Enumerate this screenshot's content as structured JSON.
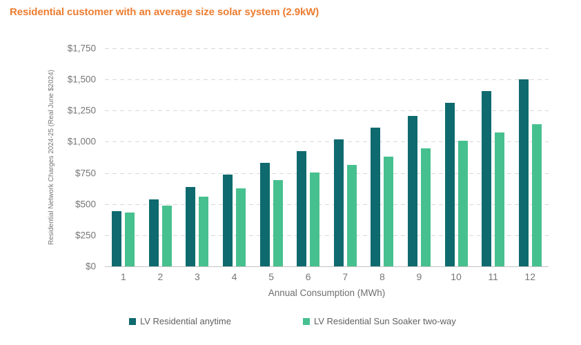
{
  "title": "Residential customer with an average size solar system (2.9kW)",
  "colors": {
    "title": "#ED7D31",
    "series1": "#0E6A6E",
    "series2": "#47C08F",
    "gridline": "#D8D8D8",
    "axis_text": "#767676",
    "baseline": "#C2C2C2"
  },
  "chart_data": {
    "type": "bar",
    "title": "Residential customer with an average size solar system (2.9kW)",
    "categories": [
      "1",
      "2",
      "3",
      "4",
      "5",
      "6",
      "7",
      "8",
      "9",
      "10",
      "11",
      "12"
    ],
    "series": [
      {
        "name": "LV Residential anytime",
        "color": "#0E6A6E",
        "values": [
          445,
          540,
          635,
          735,
          830,
          925,
          1020,
          1115,
          1210,
          1310,
          1405,
          1500
        ]
      },
      {
        "name": "LV Residential Sun Soaker two-way",
        "color": "#47C08F",
        "values": [
          430,
          490,
          560,
          625,
          690,
          755,
          815,
          880,
          945,
          1010,
          1075,
          1140
        ]
      }
    ],
    "xlabel": "Annual Consumption (MWh)",
    "ylabel": "Residential Network Charges 2024-25 (Real June $2024)",
    "ylim": [
      0,
      1750
    ],
    "ytick_step": 250,
    "ytick_labels": [
      "$0",
      "$250",
      "$500",
      "$750",
      "$1,000",
      "$1,250",
      "$1,500",
      "$1,750"
    ],
    "grid": "horizontal-dashed",
    "legend_position": "bottom"
  }
}
